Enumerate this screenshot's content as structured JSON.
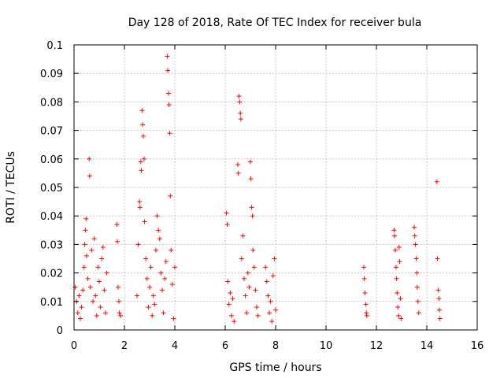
{
  "chart_data": {
    "type": "scatter",
    "title": "Day 128 of 2018, Rate Of TEC Index for receiver bula",
    "xlabel": "GPS time / hours",
    "ylabel": "ROTI / TECUs",
    "xlim": [
      0,
      16
    ],
    "ylim": [
      0,
      0.1
    ],
    "grid": true,
    "marker": "plus",
    "color": "#ff0000",
    "x_ticks": [
      "0",
      "2",
      "4",
      "6",
      "8",
      "10",
      "12",
      "14",
      "16"
    ],
    "y_ticks": [
      "0",
      "0.01",
      "0.02",
      "0.03",
      "0.04",
      "0.05",
      "0.06",
      "0.07",
      "0.08",
      "0.09",
      "0.1"
    ],
    "series": [
      {
        "name": "ROTI",
        "points": [
          [
            0.05,
            0.015
          ],
          [
            0.1,
            0.01
          ],
          [
            0.15,
            0.006
          ],
          [
            0.2,
            0.012
          ],
          [
            0.25,
            0.004
          ],
          [
            0.3,
            0.008
          ],
          [
            0.35,
            0.014
          ],
          [
            0.4,
            0.022
          ],
          [
            0.42,
            0.03
          ],
          [
            0.45,
            0.035
          ],
          [
            0.48,
            0.039
          ],
          [
            0.5,
            0.026
          ],
          [
            0.55,
            0.018
          ],
          [
            0.6,
            0.06
          ],
          [
            0.62,
            0.054
          ],
          [
            0.65,
            0.015
          ],
          [
            0.7,
            0.028
          ],
          [
            0.75,
            0.01
          ],
          [
            0.8,
            0.032
          ],
          [
            0.85,
            0.012
          ],
          [
            0.9,
            0.005
          ],
          [
            0.95,
            0.022
          ],
          [
            1.0,
            0.017
          ],
          [
            1.05,
            0.008
          ],
          [
            1.1,
            0.025
          ],
          [
            1.15,
            0.029
          ],
          [
            1.2,
            0.014
          ],
          [
            1.25,
            0.006
          ],
          [
            1.3,
            0.02
          ],
          [
            1.7,
            0.037
          ],
          [
            1.72,
            0.031
          ],
          [
            1.75,
            0.015
          ],
          [
            1.78,
            0.01
          ],
          [
            1.8,
            0.006
          ],
          [
            1.85,
            0.005
          ],
          [
            2.5,
            0.012
          ],
          [
            2.55,
            0.03
          ],
          [
            2.6,
            0.045
          ],
          [
            2.62,
            0.043
          ],
          [
            2.65,
            0.059
          ],
          [
            2.67,
            0.056
          ],
          [
            2.7,
            0.077
          ],
          [
            2.72,
            0.072
          ],
          [
            2.75,
            0.068
          ],
          [
            2.78,
            0.06
          ],
          [
            2.8,
            0.038
          ],
          [
            2.85,
            0.025
          ],
          [
            2.9,
            0.018
          ],
          [
            2.95,
            0.008
          ],
          [
            3.0,
            0.015
          ],
          [
            3.05,
            0.022
          ],
          [
            3.1,
            0.005
          ],
          [
            3.15,
            0.012
          ],
          [
            3.2,
            0.009
          ],
          [
            3.25,
            0.028
          ],
          [
            3.3,
            0.04
          ],
          [
            3.35,
            0.035
          ],
          [
            3.4,
            0.032
          ],
          [
            3.45,
            0.02
          ],
          [
            3.5,
            0.014
          ],
          [
            3.55,
            0.006
          ],
          [
            3.6,
            0.018
          ],
          [
            3.65,
            0.024
          ],
          [
            3.7,
            0.096
          ],
          [
            3.72,
            0.091
          ],
          [
            3.75,
            0.083
          ],
          [
            3.77,
            0.079
          ],
          [
            3.8,
            0.069
          ],
          [
            3.82,
            0.047
          ],
          [
            3.85,
            0.028
          ],
          [
            3.9,
            0.016
          ],
          [
            3.95,
            0.004
          ],
          [
            4.0,
            0.022
          ],
          [
            6.05,
            0.041
          ],
          [
            6.08,
            0.037
          ],
          [
            6.1,
            0.017
          ],
          [
            6.15,
            0.009
          ],
          [
            6.2,
            0.013
          ],
          [
            6.25,
            0.005
          ],
          [
            6.3,
            0.011
          ],
          [
            6.35,
            0.003
          ],
          [
            6.5,
            0.058
          ],
          [
            6.52,
            0.055
          ],
          [
            6.55,
            0.082
          ],
          [
            6.57,
            0.08
          ],
          [
            6.6,
            0.076
          ],
          [
            6.62,
            0.074
          ],
          [
            6.65,
            0.025
          ],
          [
            6.7,
            0.033
          ],
          [
            6.75,
            0.018
          ],
          [
            6.8,
            0.012
          ],
          [
            6.85,
            0.006
          ],
          [
            6.9,
            0.02
          ],
          [
            6.95,
            0.015
          ],
          [
            7.0,
            0.059
          ],
          [
            7.02,
            0.053
          ],
          [
            7.05,
            0.043
          ],
          [
            7.08,
            0.04
          ],
          [
            7.1,
            0.028
          ],
          [
            7.15,
            0.022
          ],
          [
            7.2,
            0.014
          ],
          [
            7.25,
            0.008
          ],
          [
            7.3,
            0.005
          ],
          [
            7.6,
            0.022
          ],
          [
            7.65,
            0.017
          ],
          [
            7.7,
            0.012
          ],
          [
            7.75,
            0.006
          ],
          [
            7.8,
            0.01
          ],
          [
            7.85,
            0.003
          ],
          [
            7.9,
            0.019
          ],
          [
            7.95,
            0.025
          ],
          [
            8.0,
            0.007
          ],
          [
            11.5,
            0.022
          ],
          [
            11.52,
            0.018
          ],
          [
            11.55,
            0.013
          ],
          [
            11.58,
            0.009
          ],
          [
            11.6,
            0.006
          ],
          [
            11.62,
            0.005
          ],
          [
            12.7,
            0.035
          ],
          [
            12.72,
            0.033
          ],
          [
            12.75,
            0.028
          ],
          [
            12.78,
            0.022
          ],
          [
            12.8,
            0.018
          ],
          [
            12.82,
            0.013
          ],
          [
            12.85,
            0.008
          ],
          [
            12.88,
            0.005
          ],
          [
            12.9,
            0.029
          ],
          [
            12.92,
            0.024
          ],
          [
            12.95,
            0.011
          ],
          [
            12.98,
            0.004
          ],
          [
            13.5,
            0.036
          ],
          [
            13.52,
            0.033
          ],
          [
            13.55,
            0.03
          ],
          [
            13.58,
            0.025
          ],
          [
            13.6,
            0.02
          ],
          [
            13.62,
            0.015
          ],
          [
            13.65,
            0.01
          ],
          [
            13.68,
            0.006
          ],
          [
            14.4,
            0.052
          ],
          [
            14.42,
            0.025
          ],
          [
            14.45,
            0.014
          ],
          [
            14.48,
            0.011
          ],
          [
            14.5,
            0.007
          ],
          [
            14.52,
            0.004
          ]
        ]
      }
    ]
  }
}
